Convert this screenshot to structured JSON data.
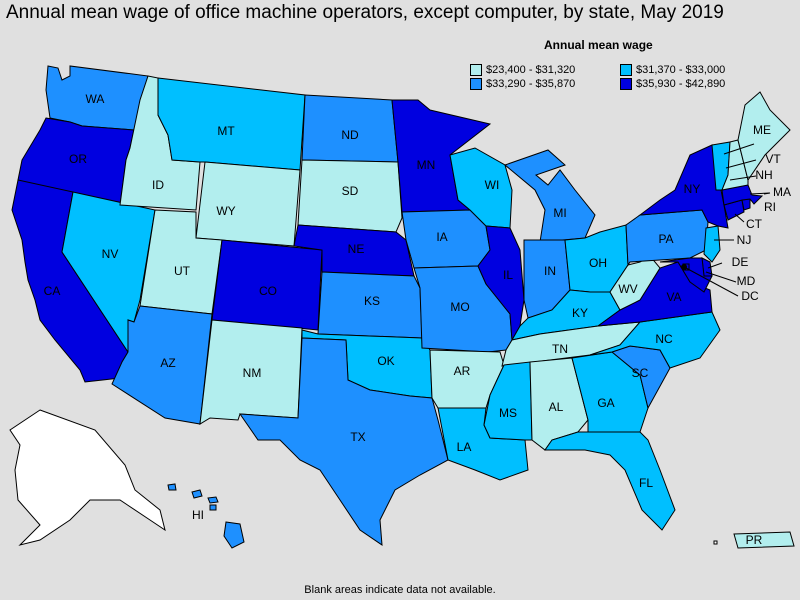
{
  "title": "Annual mean wage of office machine operators, except computer, by state, May 2019",
  "legend": {
    "title": "Annual mean wage",
    "items": [
      {
        "label": "$23,400 - $31,320",
        "color": "#b2eeee"
      },
      {
        "label": "$31,370 - $33,000",
        "color": "#00bfff"
      },
      {
        "label": "$33,290 - $35,870",
        "color": "#1e90ff"
      },
      {
        "label": "$35,930 - $42,890",
        "color": "#0000e0"
      }
    ]
  },
  "no_data_color": "#ffffff",
  "footnote": "Blank areas indicate data not available.",
  "states": [
    {
      "id": "WA",
      "label": "WA",
      "class": 2
    },
    {
      "id": "OR",
      "label": "OR",
      "class": 3
    },
    {
      "id": "CA",
      "label": "CA",
      "class": 3
    },
    {
      "id": "NV",
      "label": "NV",
      "class": 1
    },
    {
      "id": "ID",
      "label": "ID",
      "class": 0
    },
    {
      "id": "MT",
      "label": "MT",
      "class": 1
    },
    {
      "id": "WY",
      "label": "WY",
      "class": 0
    },
    {
      "id": "UT",
      "label": "UT",
      "class": 0
    },
    {
      "id": "AZ",
      "label": "AZ",
      "class": 2
    },
    {
      "id": "CO",
      "label": "CO",
      "class": 3
    },
    {
      "id": "NM",
      "label": "NM",
      "class": 0
    },
    {
      "id": "ND",
      "label": "ND",
      "class": 2
    },
    {
      "id": "SD",
      "label": "SD",
      "class": 0
    },
    {
      "id": "NE",
      "label": "NE",
      "class": 3
    },
    {
      "id": "KS",
      "label": "KS",
      "class": 2
    },
    {
      "id": "OK",
      "label": "OK",
      "class": 1
    },
    {
      "id": "TX",
      "label": "TX",
      "class": 2
    },
    {
      "id": "MN",
      "label": "MN",
      "class": 3
    },
    {
      "id": "IA",
      "label": "IA",
      "class": 2
    },
    {
      "id": "MO",
      "label": "MO",
      "class": 2
    },
    {
      "id": "AR",
      "label": "AR",
      "class": 0
    },
    {
      "id": "LA",
      "label": "LA",
      "class": 1
    },
    {
      "id": "WI",
      "label": "WI",
      "class": 1
    },
    {
      "id": "IL",
      "label": "IL",
      "class": 3
    },
    {
      "id": "MI",
      "label": "MI",
      "class": 2
    },
    {
      "id": "IN",
      "label": "IN",
      "class": 2
    },
    {
      "id": "OH",
      "label": "OH",
      "class": 1
    },
    {
      "id": "KY",
      "label": "KY",
      "class": 1
    },
    {
      "id": "TN",
      "label": "TN",
      "class": 0
    },
    {
      "id": "MS",
      "label": "MS",
      "class": 1
    },
    {
      "id": "AL",
      "label": "AL",
      "class": 0
    },
    {
      "id": "GA",
      "label": "GA",
      "class": 1
    },
    {
      "id": "FL",
      "label": "FL",
      "class": 1
    },
    {
      "id": "SC",
      "label": "SC",
      "class": 2
    },
    {
      "id": "NC",
      "label": "NC",
      "class": 1
    },
    {
      "id": "VA",
      "label": "VA",
      "class": 3
    },
    {
      "id": "WV",
      "label": "WV",
      "class": 0
    },
    {
      "id": "PA",
      "label": "PA",
      "class": 2
    },
    {
      "id": "NY",
      "label": "NY",
      "class": 3
    },
    {
      "id": "NJ",
      "label": "NJ",
      "class": 1
    },
    {
      "id": "DE",
      "label": "DE",
      "class": 3
    },
    {
      "id": "MD",
      "label": "MD",
      "class": 3
    },
    {
      "id": "DC",
      "label": "DC",
      "class": 3
    },
    {
      "id": "CT",
      "label": "CT",
      "class": 3
    },
    {
      "id": "MA",
      "label": "MA",
      "class": 3
    },
    {
      "id": "VT",
      "label": "VT",
      "class": 1
    },
    {
      "id": "NH",
      "label": "NH",
      "class": 0
    },
    {
      "id": "ME",
      "label": "ME",
      "class": 0
    },
    {
      "id": "RI",
      "label": "RI",
      "class": 3
    },
    {
      "id": "AK",
      "label": "",
      "class": -1
    },
    {
      "id": "HI",
      "label": "HI",
      "class": 2
    },
    {
      "id": "PR",
      "label": "PR",
      "class": 0
    }
  ]
}
